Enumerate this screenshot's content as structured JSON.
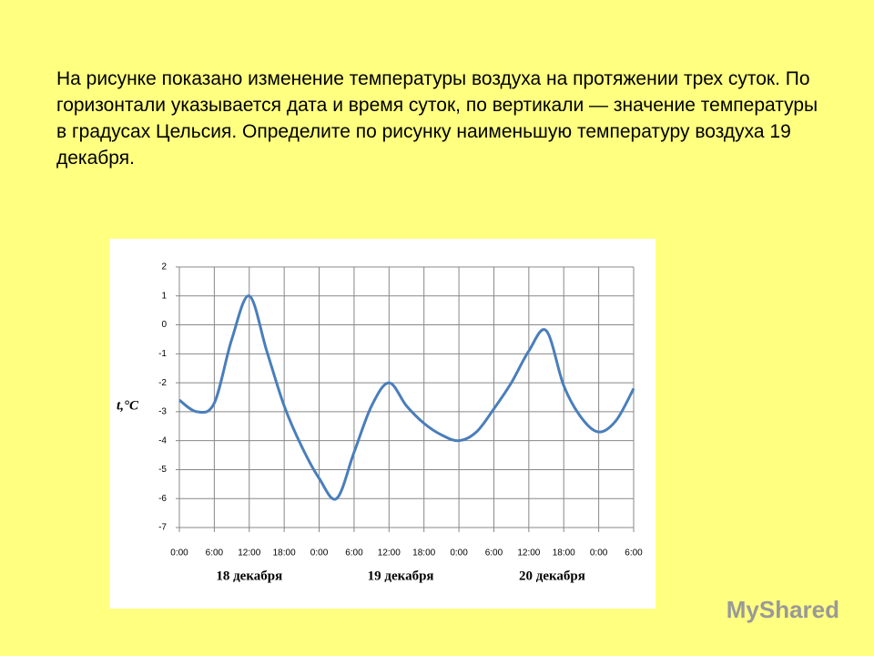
{
  "text": "На рисунке показано изменение температуры воздуха на протяжении трех суток. По горизонтали указывается дата и время суток, по вертикали — значение температуры в градусах Цельсия. Определите по рисунку наименьшую температуру воздуха 19 декабря.",
  "watermark": "MyShared",
  "chart_data": {
    "type": "line",
    "y_label": "t,°C",
    "day_labels": [
      "18 декабря",
      "19 декабря",
      "20 декабря"
    ],
    "x": [
      0,
      3,
      6,
      9,
      12,
      15,
      18,
      21,
      24,
      27,
      30,
      33,
      36,
      39,
      42,
      45,
      48,
      51,
      54,
      57,
      60,
      63,
      66,
      69,
      72,
      75,
      78
    ],
    "series": [
      {
        "color": "#4a7ebb",
        "values": [
          -2.6,
          -3.0,
          -2.7,
          -0.5,
          1,
          -0.9,
          -2.8,
          -4.2,
          -5.3,
          -6.0,
          -4.4,
          -2.8,
          -2.0,
          -2.8,
          -3.4,
          -3.8,
          -4.0,
          -3.7,
          -2.9,
          -2.0,
          -0.9,
          -0.2,
          -2.1,
          -3.2,
          -3.7,
          -3.3,
          -2.2
        ]
      }
    ],
    "xlim": [
      0,
      78
    ],
    "xticks": [
      {
        "value": 0,
        "label": "0:00"
      },
      {
        "value": 6,
        "label": "6:00"
      },
      {
        "value": 12,
        "label": "12:00"
      },
      {
        "value": 18,
        "label": "18:00"
      },
      {
        "value": 24,
        "label": "0:00"
      },
      {
        "value": 30,
        "label": "6:00"
      },
      {
        "value": 36,
        "label": "12:00"
      },
      {
        "value": 42,
        "label": "18:00"
      },
      {
        "value": 48,
        "label": "0:00"
      },
      {
        "value": 54,
        "label": "6:00"
      },
      {
        "value": 60,
        "label": "12:00"
      },
      {
        "value": 66,
        "label": "18:00"
      },
      {
        "value": 72,
        "label": "0:00"
      },
      {
        "value": 78,
        "label": "6:00"
      }
    ],
    "ylim": [
      -7,
      2
    ],
    "yticks": [
      2,
      1,
      0,
      -1,
      -2,
      -3,
      -4,
      -5,
      -6,
      -7
    ],
    "grid": true
  }
}
